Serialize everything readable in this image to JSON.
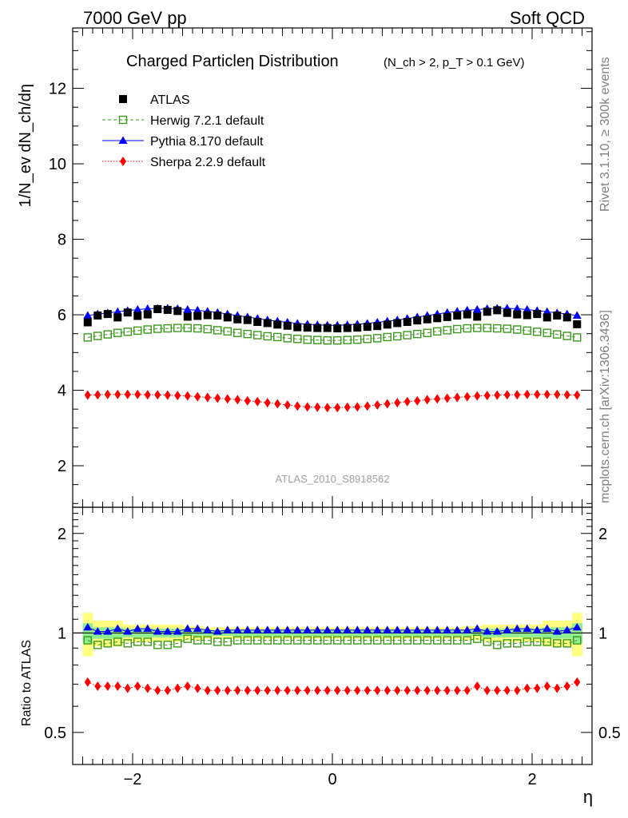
{
  "header": {
    "left": "7000 GeV pp",
    "right": "Soft QCD"
  },
  "side_labels": {
    "rivet": "Rivet 3.1.10, ≥ 300k events",
    "mcplots": "mcplots.cern.ch [arXiv:1306.3436]"
  },
  "watermark": "ATLAS_2010_S8918562",
  "colors": {
    "atlas": "#000000",
    "herwig": "#3a9a1a",
    "pythia": "#0000ff",
    "sherpa": "#ff0000",
    "band_inner": "#90ee90",
    "band_outer": "#ffff80"
  },
  "chart_data": [
    {
      "type": "scatter",
      "title": "Charged Particle η Distribution",
      "title_main": "Charged Particleη Distribution",
      "title_cut": "(N_ch > 2, p_T > 0.1 GeV)",
      "ylabel": "1/N_ev dN_ch/dη",
      "xlabel": "η",
      "xlim": [
        -2.6,
        2.6
      ],
      "ylim": [
        0.9,
        13.6
      ],
      "x_ticks": [
        -2,
        0,
        2
      ],
      "y_ticks": [
        2,
        4,
        6,
        8,
        10,
        12
      ],
      "x": [
        -2.45,
        -2.35,
        -2.25,
        -2.15,
        -2.05,
        -1.95,
        -1.85,
        -1.75,
        -1.65,
        -1.55,
        -1.45,
        -1.35,
        -1.25,
        -1.15,
        -1.05,
        -0.95,
        -0.85,
        -0.75,
        -0.65,
        -0.55,
        -0.45,
        -0.35,
        -0.25,
        -0.15,
        -0.05,
        0.05,
        0.15,
        0.25,
        0.35,
        0.45,
        0.55,
        0.65,
        0.75,
        0.85,
        0.95,
        1.05,
        1.15,
        1.25,
        1.35,
        1.45,
        1.55,
        1.65,
        1.75,
        1.85,
        1.95,
        2.05,
        2.15,
        2.25,
        2.35,
        2.45
      ],
      "series": [
        {
          "name": "ATLAS",
          "marker": "square",
          "values": [
            5.8,
            5.98,
            6.02,
            5.93,
            6.06,
            5.97,
            6.01,
            6.15,
            6.13,
            6.1,
            5.95,
            5.97,
            5.99,
            5.98,
            5.93,
            5.88,
            5.86,
            5.81,
            5.78,
            5.74,
            5.71,
            5.67,
            5.66,
            5.65,
            5.65,
            5.64,
            5.65,
            5.66,
            5.68,
            5.7,
            5.74,
            5.78,
            5.81,
            5.85,
            5.88,
            5.91,
            5.94,
            5.98,
            6.01,
            5.95,
            6.08,
            6.12,
            6.05,
            6.01,
            5.99,
            6.02,
            5.93,
            5.98,
            5.93,
            5.75
          ]
        },
        {
          "name": "Herwig 7.2.1 default",
          "marker": "open-square",
          "values": [
            5.4,
            5.44,
            5.48,
            5.52,
            5.55,
            5.58,
            5.61,
            5.63,
            5.64,
            5.65,
            5.65,
            5.64,
            5.62,
            5.59,
            5.56,
            5.52,
            5.49,
            5.46,
            5.43,
            5.41,
            5.38,
            5.36,
            5.34,
            5.33,
            5.32,
            5.32,
            5.33,
            5.34,
            5.36,
            5.38,
            5.41,
            5.43,
            5.46,
            5.49,
            5.52,
            5.56,
            5.59,
            5.62,
            5.64,
            5.65,
            5.65,
            5.64,
            5.63,
            5.61,
            5.58,
            5.55,
            5.52,
            5.48,
            5.44,
            5.4
          ]
        },
        {
          "name": "Pythia 8.170 default",
          "marker": "triangle",
          "values": [
            5.98,
            6.02,
            6.05,
            6.08,
            6.11,
            6.14,
            6.16,
            6.17,
            6.17,
            6.16,
            6.14,
            6.12,
            6.09,
            6.06,
            6.02,
            5.98,
            5.94,
            5.9,
            5.86,
            5.83,
            5.8,
            5.77,
            5.75,
            5.73,
            5.72,
            5.72,
            5.73,
            5.75,
            5.77,
            5.8,
            5.83,
            5.86,
            5.9,
            5.94,
            5.98,
            6.02,
            6.06,
            6.09,
            6.12,
            6.14,
            6.16,
            6.17,
            6.17,
            6.16,
            6.14,
            6.11,
            6.08,
            6.05,
            6.02,
            5.98
          ]
        },
        {
          "name": "Sherpa 2.2.9 default",
          "marker": "diamond",
          "values": [
            3.87,
            3.88,
            3.89,
            3.89,
            3.89,
            3.89,
            3.88,
            3.88,
            3.87,
            3.86,
            3.85,
            3.83,
            3.81,
            3.79,
            3.77,
            3.75,
            3.72,
            3.7,
            3.67,
            3.64,
            3.61,
            3.58,
            3.56,
            3.55,
            3.54,
            3.54,
            3.55,
            3.56,
            3.58,
            3.61,
            3.64,
            3.67,
            3.7,
            3.72,
            3.75,
            3.77,
            3.79,
            3.81,
            3.83,
            3.85,
            3.86,
            3.87,
            3.88,
            3.88,
            3.89,
            3.89,
            3.89,
            3.89,
            3.88,
            3.87
          ]
        }
      ]
    },
    {
      "type": "scatter",
      "title": "",
      "ylabel": "Ratio to ATLAS",
      "xlabel": "η",
      "xlim": [
        -2.6,
        2.6
      ],
      "ylim": [
        0.4,
        2.4
      ],
      "y_scale": "log",
      "x_ticks": [
        -2,
        0,
        2
      ],
      "y_ticks": [
        0.5,
        1,
        2
      ],
      "x": [
        -2.45,
        -2.35,
        -2.25,
        -2.15,
        -2.05,
        -1.95,
        -1.85,
        -1.75,
        -1.65,
        -1.55,
        -1.45,
        -1.35,
        -1.25,
        -1.15,
        -1.05,
        -0.95,
        -0.85,
        -0.75,
        -0.65,
        -0.55,
        -0.45,
        -0.35,
        -0.25,
        -0.15,
        -0.05,
        0.05,
        0.15,
        0.25,
        0.35,
        0.45,
        0.55,
        0.65,
        0.75,
        0.85,
        0.95,
        1.05,
        1.15,
        1.25,
        1.35,
        1.45,
        1.55,
        1.65,
        1.75,
        1.85,
        1.95,
        2.05,
        2.15,
        2.25,
        2.35,
        2.45
      ],
      "band_inner_halfwidth": [
        0.07,
        0.04,
        0.04,
        0.04,
        0.03,
        0.03,
        0.03,
        0.03,
        0.03,
        0.03,
        0.02,
        0.02,
        0.02,
        0.02,
        0.02,
        0.02,
        0.02,
        0.02,
        0.02,
        0.02,
        0.02,
        0.02,
        0.02,
        0.02,
        0.02,
        0.02,
        0.02,
        0.02,
        0.02,
        0.02,
        0.02,
        0.02,
        0.02,
        0.02,
        0.02,
        0.02,
        0.02,
        0.02,
        0.02,
        0.02,
        0.03,
        0.03,
        0.03,
        0.03,
        0.03,
        0.03,
        0.04,
        0.04,
        0.04,
        0.07
      ],
      "band_outer_halfwidth": [
        0.15,
        0.09,
        0.09,
        0.09,
        0.06,
        0.06,
        0.06,
        0.06,
        0.06,
        0.06,
        0.05,
        0.05,
        0.04,
        0.04,
        0.04,
        0.04,
        0.04,
        0.04,
        0.04,
        0.04,
        0.04,
        0.04,
        0.04,
        0.04,
        0.04,
        0.04,
        0.04,
        0.04,
        0.04,
        0.04,
        0.04,
        0.04,
        0.04,
        0.04,
        0.04,
        0.04,
        0.04,
        0.04,
        0.05,
        0.05,
        0.06,
        0.06,
        0.06,
        0.06,
        0.06,
        0.06,
        0.09,
        0.09,
        0.09,
        0.15
      ],
      "series": [
        {
          "name": "Herwig 7.2.1 default",
          "marker": "open-square",
          "values": [
            0.95,
            0.92,
            0.93,
            0.94,
            0.93,
            0.94,
            0.94,
            0.92,
            0.92,
            0.93,
            0.96,
            0.95,
            0.95,
            0.94,
            0.94,
            0.95,
            0.95,
            0.95,
            0.95,
            0.95,
            0.95,
            0.95,
            0.95,
            0.95,
            0.95,
            0.95,
            0.95,
            0.95,
            0.95,
            0.95,
            0.95,
            0.95,
            0.95,
            0.95,
            0.95,
            0.95,
            0.95,
            0.95,
            0.95,
            0.96,
            0.94,
            0.92,
            0.93,
            0.93,
            0.94,
            0.94,
            0.94,
            0.93,
            0.93,
            0.95
          ]
        },
        {
          "name": "Pythia 8.170 default",
          "marker": "triangle",
          "values": [
            1.04,
            1.01,
            1.01,
            1.03,
            1.01,
            1.03,
            1.03,
            1.01,
            1.01,
            1.01,
            1.03,
            1.03,
            1.02,
            1.01,
            1.02,
            1.02,
            1.02,
            1.02,
            1.02,
            1.02,
            1.02,
            1.02,
            1.02,
            1.02,
            1.02,
            1.02,
            1.02,
            1.02,
            1.02,
            1.02,
            1.02,
            1.02,
            1.02,
            1.02,
            1.02,
            1.02,
            1.02,
            1.02,
            1.02,
            1.03,
            1.01,
            1.01,
            1.02,
            1.03,
            1.03,
            1.02,
            1.03,
            1.01,
            1.02,
            1.04
          ]
        },
        {
          "name": "Sherpa 2.2.9 default",
          "marker": "diamond",
          "values": [
            0.71,
            0.69,
            0.69,
            0.69,
            0.68,
            0.69,
            0.68,
            0.67,
            0.67,
            0.68,
            0.69,
            0.68,
            0.67,
            0.67,
            0.67,
            0.67,
            0.67,
            0.67,
            0.67,
            0.67,
            0.67,
            0.67,
            0.67,
            0.67,
            0.67,
            0.67,
            0.67,
            0.67,
            0.67,
            0.67,
            0.67,
            0.67,
            0.67,
            0.67,
            0.67,
            0.67,
            0.67,
            0.67,
            0.67,
            0.69,
            0.67,
            0.67,
            0.67,
            0.67,
            0.68,
            0.68,
            0.69,
            0.68,
            0.69,
            0.71
          ]
        }
      ]
    }
  ]
}
